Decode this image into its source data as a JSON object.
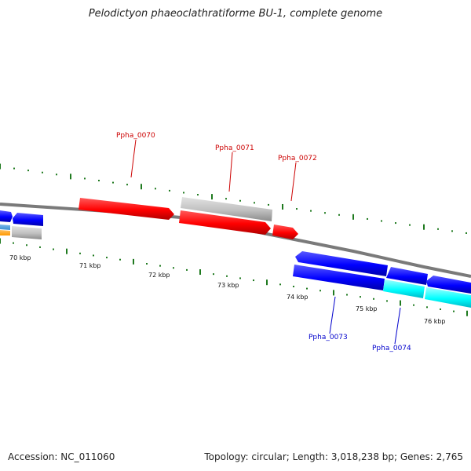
{
  "title": "Pelodictyon phaeoclathratiforme BU-1, complete genome",
  "footer": {
    "accession": "Accession: NC_011060",
    "summary": "Topology: circular; Length: 3,018,238 bp; Genes: 2,765"
  },
  "colors": {
    "forward_feature": "#ff0000",
    "reverse_feature": "#0000ff",
    "other_feature": "#c0c0c0",
    "cyan_feature": "#00ffff",
    "orange_feature": "#ff9900",
    "steelblue_feature": "#3b8fd0",
    "backbone": "#808080",
    "tick": "#1f7a1f",
    "forward_label": "#cc0000",
    "reverse_label": "#0000cc"
  },
  "scale": {
    "unit": "kbp",
    "ticks_kbp": [
      70,
      71,
      72,
      73,
      74,
      75,
      76
    ],
    "tick_labels": [
      "70 kbp",
      "71 kbp",
      "72 kbp",
      "73 kbp",
      "74 kbp",
      "75 kbp",
      "76 kbp"
    ]
  },
  "gene_labels": [
    {
      "text": "Ppha_0070",
      "strand": "forward"
    },
    {
      "text": "Ppha_0071",
      "strand": "forward"
    },
    {
      "text": "Ppha_0072",
      "strand": "forward"
    },
    {
      "text": "Ppha_0073",
      "strand": "reverse"
    },
    {
      "text": "Ppha_0074",
      "strand": "reverse"
    }
  ]
}
